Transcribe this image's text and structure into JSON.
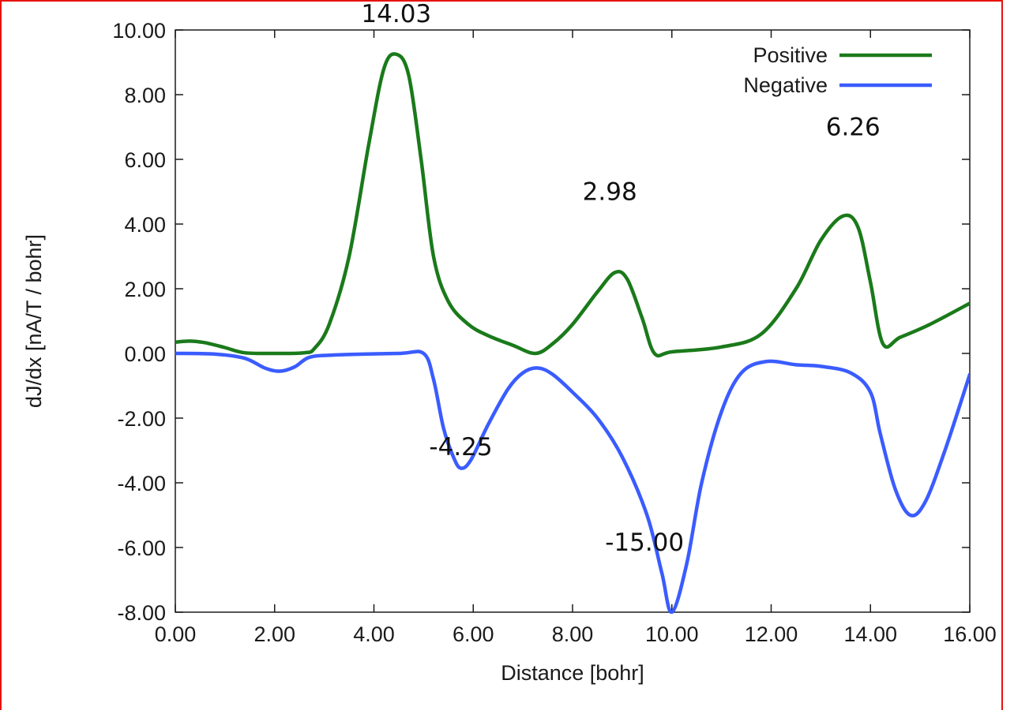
{
  "chart_data": {
    "type": "line",
    "xlabel": "Distance [bohr]",
    "ylabel": "dJ/dx [nA/T / bohr]",
    "xlim": [
      0,
      16
    ],
    "ylim": [
      -8,
      10
    ],
    "xticks": [
      0,
      2,
      4,
      6,
      8,
      10,
      12,
      14,
      16
    ],
    "yticks": [
      -8,
      -6,
      -4,
      -2,
      0,
      2,
      4,
      6,
      8,
      10
    ],
    "xtick_labels": [
      "0.00",
      "2.00",
      "4.00",
      "6.00",
      "8.00",
      "10.00",
      "12.00",
      "14.00",
      "16.00"
    ],
    "ytick_labels": [
      "-8.00",
      "-6.00",
      "-4.00",
      "-2.00",
      "0.00",
      "2.00",
      "4.00",
      "6.00",
      "8.00",
      "10.00"
    ],
    "grid": false,
    "legend_position": "top-right",
    "series": [
      {
        "name": "Positive",
        "color": "#1a7a1a",
        "x": [
          0,
          0.3,
          0.6,
          1.0,
          1.4,
          2.0,
          2.6,
          2.8,
          3.1,
          3.5,
          3.9,
          4.2,
          4.45,
          4.7,
          4.95,
          5.2,
          5.5,
          5.9,
          6.3,
          6.8,
          7.25,
          7.6,
          8.0,
          8.5,
          8.85,
          9.1,
          9.4,
          9.65,
          10.0,
          11.0,
          11.8,
          12.5,
          13.0,
          13.45,
          13.75,
          14.0,
          14.25,
          14.6,
          15.2,
          16.0
        ],
        "y": [
          0.35,
          0.38,
          0.33,
          0.18,
          0.02,
          0.0,
          0.02,
          0.15,
          0.9,
          3.0,
          6.5,
          8.8,
          9.25,
          8.6,
          6.0,
          3.0,
          1.6,
          0.9,
          0.55,
          0.25,
          0.0,
          0.3,
          0.9,
          1.9,
          2.5,
          2.3,
          1.1,
          0.0,
          0.05,
          0.2,
          0.6,
          2.0,
          3.5,
          4.25,
          3.9,
          2.2,
          0.3,
          0.5,
          0.9,
          1.55
        ]
      },
      {
        "name": "Negative",
        "color": "#3a5cff",
        "x": [
          0,
          0.8,
          1.4,
          1.8,
          2.1,
          2.4,
          2.7,
          3.2,
          4.5,
          5.0,
          5.2,
          5.4,
          5.6,
          5.75,
          5.95,
          6.3,
          6.7,
          7.0,
          7.3,
          7.6,
          8.0,
          8.5,
          9.0,
          9.5,
          9.8,
          10.0,
          10.3,
          10.6,
          11.0,
          11.4,
          11.9,
          12.5,
          13.0,
          13.6,
          14.0,
          14.2,
          14.5,
          14.8,
          15.1,
          15.5,
          16.0
        ],
        "y": [
          0.0,
          -0.02,
          -0.15,
          -0.45,
          -0.55,
          -0.42,
          -0.12,
          -0.05,
          0.0,
          0.0,
          -0.8,
          -2.3,
          -3.2,
          -3.55,
          -3.3,
          -2.2,
          -1.1,
          -0.6,
          -0.45,
          -0.65,
          -1.2,
          -2.0,
          -3.2,
          -5.0,
          -6.8,
          -8.0,
          -6.5,
          -4.0,
          -1.8,
          -0.6,
          -0.25,
          -0.35,
          -0.4,
          -0.6,
          -1.2,
          -2.5,
          -4.2,
          -5.0,
          -4.6,
          -3.0,
          -0.65
        ]
      }
    ],
    "annotations": [
      {
        "text": "14.03",
        "x": 4.45,
        "y": 10.25
      },
      {
        "text": "2.98",
        "x": 8.75,
        "y": 4.75
      },
      {
        "text": "6.26",
        "x": 13.65,
        "y": 6.75
      },
      {
        "text": "-4.25",
        "x": 5.75,
        "y": -3.15
      },
      {
        "text": "-15.00",
        "x": 9.45,
        "y": -6.1
      }
    ]
  }
}
